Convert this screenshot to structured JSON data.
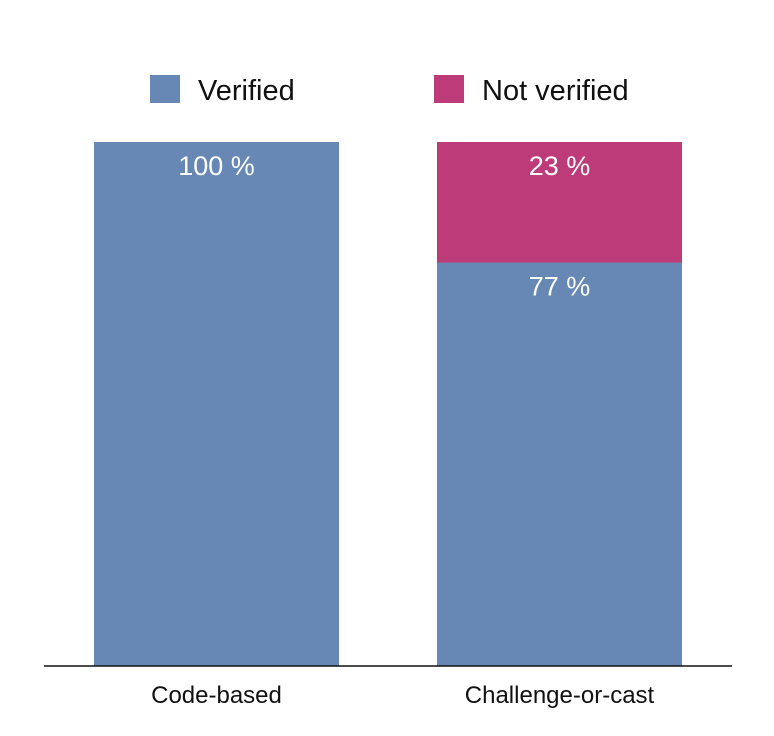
{
  "chart_data": {
    "type": "bar",
    "stacked": true,
    "percent": true,
    "categories": [
      "Code-based",
      "Challenge-or-cast"
    ],
    "series": [
      {
        "name": "Verified",
        "values": [
          100,
          77
        ],
        "labels": [
          "100 %",
          "77 %"
        ],
        "color": "#6788b4"
      },
      {
        "name": "Not verified",
        "values": [
          0,
          23
        ],
        "labels": [
          "",
          "23 %"
        ],
        "color": "#bd3b79"
      }
    ],
    "title": "",
    "xlabel": "",
    "ylabel": "",
    "ylim": [
      0,
      100
    ],
    "grid": false,
    "legend_position": "top"
  }
}
